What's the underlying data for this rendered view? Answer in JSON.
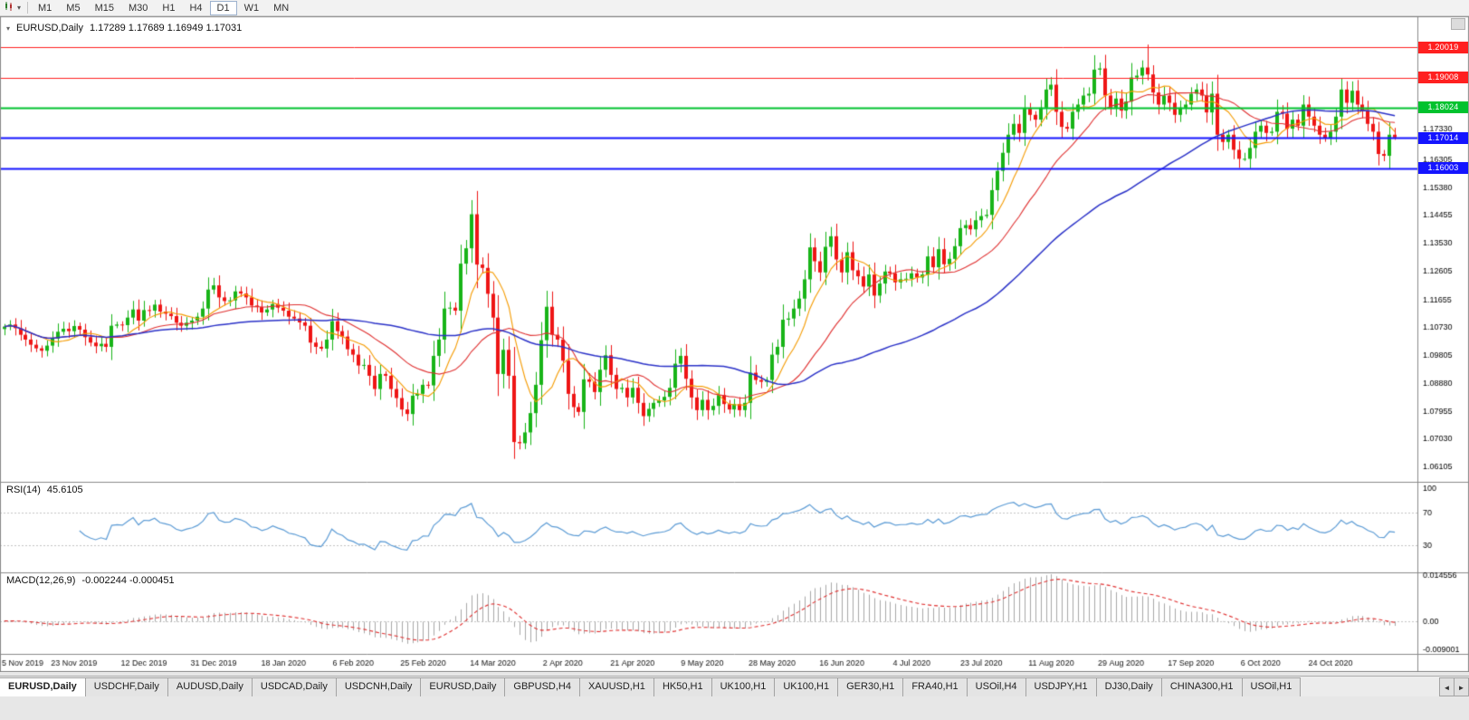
{
  "icons": {
    "collapse_triangle": "▾",
    "caret_down": "▾",
    "tab_prev": "◄",
    "tab_next": "►"
  },
  "toolbar": {
    "timeframes": [
      "M1",
      "M5",
      "M15",
      "M30",
      "H1",
      "H4",
      "D1",
      "W1",
      "MN"
    ],
    "active": "D1"
  },
  "tabs": {
    "active_index": 0,
    "items": [
      "EURUSD,Daily",
      "USDCHF,Daily",
      "AUDUSD,Daily",
      "USDCAD,Daily",
      "USDCNH,Daily",
      "EURUSD,Daily",
      "GBPUSD,H4",
      "XAUUSD,H1",
      "HK50,H1",
      "UK100,H1",
      "UK100,H1",
      "GER30,H1",
      "FRA40,H1",
      "USOil,H4",
      "USDJPY,H1",
      "DJ30,Daily",
      "CHINA300,H1",
      "USOil,H1"
    ]
  },
  "chart_data": {
    "type": "candlestick",
    "symbol": "EURUSD",
    "timeframe": "Daily",
    "title": "EURUSD,Daily",
    "ohlc_text": "1.17289 1.17689 1.16949 1.17031",
    "open": "1.17289",
    "high": "1.17689",
    "low": "1.16949",
    "close": "1.17031",
    "up_color": "#18b418",
    "down_color": "#ee1515",
    "price_range": [
      1.056,
      1.2105
    ],
    "price_axis_ticks": [
      "1.17330",
      "1.16305",
      "1.15380",
      "1.14455",
      "1.13530",
      "1.12605",
      "1.11655",
      "1.10730",
      "1.09805",
      "1.08880",
      "1.07955",
      "1.07030",
      "1.06105"
    ],
    "x_labels": [
      "5 Nov 2019",
      "23 Nov 2019",
      "12 Dec 2019",
      "31 Dec 2019",
      "18 Jan 2020",
      "6 Feb 2020",
      "25 Feb 2020",
      "14 Mar 2020",
      "2 Apr 2020",
      "21 Apr 2020",
      "9 May 2020",
      "28 May 2020",
      "16 Jun 2020",
      "4 Jul 2020",
      "23 Jul 2020",
      "11 Aug 2020",
      "29 Aug 2020",
      "17 Sep 2020",
      "6 Oct 2020",
      "24 Oct 2020"
    ],
    "label_stride": 13,
    "closes": [
      1.1075,
      1.1082,
      1.107,
      1.1048,
      1.1032,
      1.1015,
      1.1003,
      1.0995,
      1.1012,
      1.1035,
      1.1058,
      1.1068,
      1.106,
      1.1077,
      1.1065,
      1.104,
      1.1022,
      1.101,
      1.1018,
      1.1008,
      1.1078,
      1.1082,
      1.108,
      1.1105,
      1.1132,
      1.1095,
      1.113,
      1.1128,
      1.1148,
      1.1125,
      1.1118,
      1.111,
      1.1088,
      1.1078,
      1.1088,
      1.1095,
      1.1108,
      1.1135,
      1.1198,
      1.1212,
      1.1172,
      1.116,
      1.1162,
      1.1192,
      1.1185,
      1.1172,
      1.1145,
      1.114,
      1.1122,
      1.1132,
      1.115,
      1.1138,
      1.1128,
      1.1108,
      1.1102,
      1.1089,
      1.1078,
      1.1022,
      1.1008,
      1.1002,
      1.1032,
      1.1093,
      1.106,
      1.1042,
      1.1,
      1.0982,
      1.0946,
      1.0948,
      1.0912,
      1.0868,
      1.0918,
      1.0912,
      1.0868,
      1.0838,
      1.08,
      1.0785,
      1.0846,
      1.0852,
      1.0882,
      1.088,
      1.0978,
      1.1032,
      1.1135,
      1.1138,
      1.1128,
      1.1284,
      1.1335,
      1.1448,
      1.1281,
      1.127,
      1.1184,
      1.1105,
      1.0918,
      1.0998,
      1.0912,
      1.0692,
      1.0688,
      1.0724,
      1.0788,
      1.0882,
      1.103,
      1.1141,
      1.1048,
      1.1032,
      1.0962,
      1.0852,
      1.0808,
      1.0792,
      1.09,
      1.0892,
      1.0858,
      1.0932,
      1.098,
      1.0915,
      1.0868,
      1.0872,
      1.084,
      1.0872,
      1.0822,
      1.0778,
      1.0802,
      1.0822,
      1.083,
      1.0842,
      1.0872,
      1.0952,
      1.0978,
      1.0902,
      1.084,
      1.0798,
      1.0832,
      1.0798,
      1.0812,
      1.0848,
      1.0818,
      1.08,
      1.0818,
      1.0798,
      1.0822,
      1.0922,
      1.0898,
      1.0892,
      1.0898,
      1.0982,
      1.1008,
      1.1098,
      1.1102,
      1.1135,
      1.1168,
      1.1232,
      1.1338,
      1.1292,
      1.1255,
      1.134,
      1.1375,
      1.1298,
      1.1255,
      1.1322,
      1.1262,
      1.1242,
      1.1208,
      1.1248,
      1.1178,
      1.1218,
      1.1258,
      1.1252,
      1.1222,
      1.1232,
      1.1234,
      1.1252,
      1.1238,
      1.1248,
      1.1308,
      1.1272,
      1.1332,
      1.1282,
      1.13,
      1.1342,
      1.1402,
      1.1412,
      1.1398,
      1.1428,
      1.1442,
      1.1446,
      1.1528,
      1.1592,
      1.1652,
      1.1712,
      1.1748,
      1.1718,
      1.1798,
      1.1778,
      1.1762,
      1.1802,
      1.1862,
      1.1878,
      1.1788,
      1.1738,
      1.1732,
      1.1788,
      1.1812,
      1.1842,
      1.1848,
      1.1928,
      1.1932,
      1.1842,
      1.1802,
      1.1832,
      1.1792,
      1.1822,
      1.1902,
      1.1908,
      1.1935,
      1.1912,
      1.1852,
      1.1812,
      1.1842,
      1.1818,
      1.1778,
      1.1802,
      1.1812,
      1.1848,
      1.1862,
      1.1842,
      1.1786,
      1.1848,
      1.1712,
      1.1688,
      1.1712,
      1.1662,
      1.1632,
      1.1632,
      1.1668,
      1.1722,
      1.1742,
      1.1718,
      1.1722,
      1.1788,
      1.1782,
      1.1732,
      1.1762,
      1.1742,
      1.1812,
      1.1772,
      1.1742,
      1.1712,
      1.1702,
      1.1722,
      1.1772,
      1.1862,
      1.1818,
      1.1858,
      1.1812,
      1.1792,
      1.1748,
      1.1722,
      1.1648,
      1.1642,
      1.1712,
      1.1703
    ],
    "wick_overrides": [
      {
        "i": 87,
        "h": 1.1495
      },
      {
        "i": 95,
        "l": 1.0636
      },
      {
        "i": 213,
        "h": 1.2011
      },
      {
        "i": 259,
        "l": 1.1695
      }
    ],
    "moving_averages": [
      {
        "period": 8,
        "color": "#f59b00"
      },
      {
        "period": 20,
        "color": "#e03030"
      },
      {
        "period": 55,
        "color": "#2b32c8"
      }
    ],
    "hlines": [
      {
        "price": 1.20019,
        "label": "1.20019",
        "color": "#ff2020",
        "width": 1
      },
      {
        "price": 1.19008,
        "label": "1.19008",
        "color": "#ff2020",
        "width": 1
      },
      {
        "price": 1.18024,
        "label": "1.18024",
        "color": "#00c22e",
        "width": 2
      },
      {
        "price": 1.17014,
        "label": "1.17014",
        "color": "#1414ff",
        "width": 2
      },
      {
        "price": 1.16003,
        "label": "1.16003",
        "color": "#1414ff",
        "width": 2
      }
    ],
    "rsi": {
      "label": "RSI(14)",
      "last_value": "45.6105",
      "period": 14,
      "color": "#5b9bd5",
      "levels": [
        70,
        30
      ],
      "axis_ticks": [
        100,
        70,
        30
      ],
      "range": [
        -4,
        108
      ]
    },
    "macd": {
      "label": "MACD(12,26,9)",
      "values_text": "-0.002244 -0.000451",
      "fast": 12,
      "slow": 26,
      "signal": 9,
      "hist_color": "#a8a8a8",
      "signal_color": "#e03030",
      "axis_ticks": [
        "0.014556",
        "0.00",
        "-0.009001"
      ],
      "range": [
        -0.0105,
        0.0155
      ]
    }
  }
}
